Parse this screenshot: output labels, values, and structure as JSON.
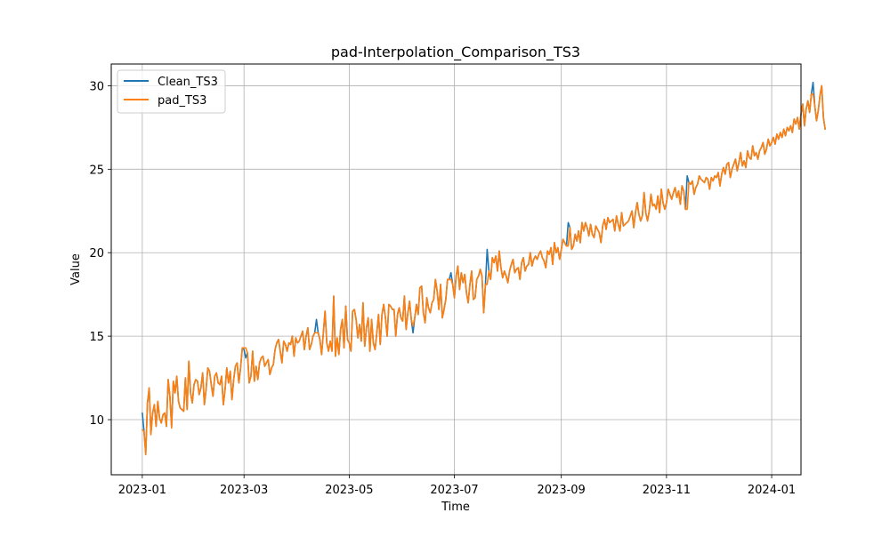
{
  "chart_data": {
    "type": "line",
    "title": "pad-Interpolation_Comparison_TS3",
    "xlabel": "Time",
    "ylabel": "Value",
    "x_range": [
      "2022-12-14",
      "2024-01-18"
    ],
    "ylim": [
      6.7,
      31.3
    ],
    "grid": true,
    "legend_position": "top-left",
    "x_ticks": [
      "2023-01",
      "2023-03",
      "2023-05",
      "2023-07",
      "2023-09",
      "2023-11",
      "2024-01"
    ],
    "y_ticks": [
      10,
      15,
      20,
      25,
      30
    ],
    "start_date": "2023-01-01",
    "series": [
      {
        "name": "Clean_TS3",
        "color": "#1f77b4",
        "values": [
          10.4,
          9.3,
          8.0,
          11.0,
          11.9,
          9.2,
          10.4,
          10.9,
          9.6,
          11.1,
          10.1,
          9.8,
          10.3,
          10.4,
          9.6,
          12.4,
          11.4,
          9.6,
          12.3,
          11.6,
          12.6,
          11.1,
          10.7,
          10.6,
          10.5,
          12.5,
          10.6,
          13.5,
          11.6,
          11.0,
          12.1,
          12.4,
          12.3,
          11.5,
          11.9,
          12.8,
          10.9,
          11.8,
          13.1,
          12.9,
          12.1,
          11.4,
          12.6,
          12.8,
          12.2,
          12.1,
          12.6,
          10.9,
          11.8,
          13.1,
          12.2,
          12.9,
          11.2,
          12.4,
          13.2,
          13.4,
          12.2,
          13.1,
          14.3,
          14.2,
          13.7,
          14.0,
          12.2,
          12.6,
          14.1,
          12.3,
          13.2,
          12.4,
          13.4,
          13.7,
          13.8,
          13.2,
          13.4,
          13.6,
          12.7,
          13.1,
          13.3,
          14.2,
          14.6,
          14.8,
          14.1,
          13.4,
          14.7,
          14.5,
          14.1,
          14.6,
          14.5,
          15.0,
          13.8,
          14.9,
          14.6,
          14.7,
          15.0,
          15.3,
          14.2,
          15.0,
          15.5,
          14.2,
          14.5,
          15.0,
          15.2,
          16.0,
          15.2,
          14.8,
          13.9,
          15.2,
          16.5,
          14.6,
          14.1,
          14.7,
          14.1,
          17.4,
          13.8,
          14.9,
          13.9,
          15.4,
          16.0,
          14.3,
          16.8,
          14.8,
          14.6,
          14.1,
          16.5,
          16.6,
          16.0,
          14.9,
          15.7,
          14.7,
          17.0,
          14.4,
          15.5,
          16.1,
          14.1,
          16.0,
          14.6,
          14.2,
          15.2,
          16.3,
          14.5,
          16.3,
          16.9,
          16.1,
          15.0,
          16.9,
          16.8,
          16.6,
          16.6,
          15.0,
          16.3,
          16.7,
          16.1,
          15.9,
          17.4,
          15.4,
          16.4,
          17.1,
          16.0,
          15.2,
          16.1,
          16.9,
          16.3,
          17.9,
          18.0,
          16.4,
          15.8,
          17.3,
          16.7,
          16.4,
          17.0,
          17.2,
          18.4,
          17.7,
          16.6,
          18.1,
          16.1,
          16.6,
          17.2,
          18.4,
          18.4,
          18.8,
          18.1,
          17.3,
          18.6,
          19.2,
          17.8,
          18.8,
          18.2,
          18.7,
          17.6,
          17.0,
          18.1,
          18.9,
          17.2,
          17.3,
          18.4,
          18.6,
          19.0,
          18.6,
          16.4,
          18.1,
          20.2,
          18.9,
          18.4,
          19.7,
          19.4,
          19.8,
          18.9,
          20.1,
          19.1,
          18.5,
          18.9,
          18.6,
          18.2,
          18.9,
          19.3,
          19.6,
          18.8,
          19.0,
          19.1,
          18.4,
          19.4,
          19.7,
          18.9,
          19.2,
          19.3,
          20.0,
          19.2,
          19.6,
          19.8,
          19.6,
          19.9,
          20.1,
          19.7,
          19.5,
          19.1,
          20.1,
          19.9,
          20.3,
          19.3,
          20.6,
          20.0,
          20.3,
          19.6,
          20.2,
          20.8,
          20.6,
          20.4,
          21.8,
          21.5,
          20.2,
          20.4,
          21.1,
          20.7,
          21.3,
          20.6,
          21.8,
          21.3,
          21.8,
          21.5,
          21.0,
          21.7,
          21.1,
          20.9,
          21.6,
          21.4,
          21.2,
          20.6,
          21.6,
          22.0,
          21.4,
          22.1,
          21.8,
          21.9,
          22.0,
          21.3,
          22.2,
          21.7,
          21.3,
          22.4,
          21.6,
          21.7,
          21.8,
          21.9,
          22.2,
          22.5,
          21.5,
          22.4,
          23.0,
          22.3,
          21.9,
          22.2,
          23.6,
          22.4,
          21.9,
          22.5,
          23.5,
          22.8,
          22.9,
          22.6,
          23.4,
          22.4,
          23.8,
          23.0,
          22.6,
          23.0,
          23.8,
          23.5,
          23.2,
          23.6,
          23.9,
          23.3,
          23.7,
          22.9,
          24.0,
          23.7,
          22.6,
          24.6,
          24.2,
          24.1,
          24.3,
          23.5,
          23.9,
          24.1,
          24.6,
          24.4,
          24.3,
          24.2,
          24.5,
          24.4,
          23.8,
          24.5,
          24.3,
          24.6,
          24.5,
          24.8,
          24.0,
          24.7,
          25.1,
          24.7,
          25.3,
          25.4,
          24.5,
          25.0,
          25.3,
          25.6,
          24.9,
          25.4,
          26.0,
          25.2,
          25.5,
          25.1,
          26.1,
          25.7,
          25.6,
          26.4,
          25.8,
          26.0,
          25.6,
          26.1,
          26.3,
          26.6,
          25.9,
          26.2,
          26.8,
          26.4,
          26.6,
          26.9,
          26.5,
          27.1,
          26.8,
          27.2,
          26.9,
          27.4,
          27.0,
          27.5,
          27.3,
          27.6,
          27.2,
          28.0,
          27.7,
          28.1,
          27.4,
          28.3,
          28.9,
          27.6,
          28.6,
          29.1,
          28.4,
          29.5,
          30.2,
          28.8,
          27.9,
          28.5,
          29.4,
          30.0,
          28.1,
          27.4
        ]
      },
      {
        "name": "pad_TS3",
        "color": "#ff7f0e",
        "values": [
          9.4,
          9.3,
          7.9,
          11.0,
          11.9,
          9.1,
          10.4,
          10.9,
          9.6,
          11.1,
          10.1,
          9.8,
          10.3,
          10.4,
          9.6,
          12.4,
          11.4,
          9.5,
          12.3,
          11.6,
          12.6,
          11.1,
          10.7,
          10.6,
          10.5,
          12.5,
          10.6,
          13.5,
          11.6,
          11.0,
          12.1,
          12.4,
          12.3,
          11.5,
          11.9,
          12.8,
          10.9,
          11.8,
          13.1,
          12.9,
          12.1,
          11.4,
          12.6,
          12.8,
          12.2,
          12.1,
          12.6,
          10.9,
          11.8,
          13.1,
          12.2,
          12.9,
          11.2,
          12.4,
          13.2,
          13.4,
          12.2,
          13.1,
          14.3,
          14.3,
          14.3,
          14.0,
          12.2,
          12.6,
          14.1,
          12.3,
          13.2,
          12.4,
          13.4,
          13.7,
          13.8,
          13.2,
          13.4,
          13.6,
          12.7,
          13.1,
          13.3,
          14.2,
          14.6,
          14.8,
          14.1,
          13.4,
          14.7,
          14.5,
          14.1,
          14.6,
          14.5,
          15.0,
          13.8,
          14.9,
          14.6,
          14.7,
          15.0,
          15.3,
          14.2,
          15.0,
          15.5,
          14.2,
          14.5,
          15.0,
          15.2,
          15.2,
          15.2,
          14.8,
          13.9,
          15.2,
          16.5,
          14.6,
          14.1,
          14.7,
          14.1,
          17.4,
          13.8,
          14.9,
          13.9,
          15.4,
          16.0,
          14.3,
          16.8,
          14.8,
          14.6,
          14.1,
          16.5,
          16.6,
          16.0,
          14.9,
          15.7,
          14.7,
          17.0,
          14.4,
          15.5,
          16.1,
          14.1,
          16.0,
          14.6,
          14.2,
          15.2,
          16.3,
          14.5,
          16.3,
          16.9,
          16.1,
          15.0,
          16.9,
          16.8,
          16.6,
          16.6,
          15.0,
          16.3,
          16.7,
          16.1,
          15.9,
          17.4,
          15.4,
          16.4,
          17.1,
          16.0,
          15.6,
          16.1,
          16.9,
          16.3,
          17.9,
          18.0,
          16.4,
          15.8,
          17.3,
          16.7,
          16.4,
          17.0,
          17.2,
          18.4,
          17.7,
          16.6,
          18.1,
          16.1,
          16.6,
          17.2,
          18.4,
          18.4,
          18.4,
          18.1,
          17.3,
          18.6,
          19.2,
          17.8,
          18.8,
          18.2,
          18.7,
          17.6,
          17.0,
          18.1,
          18.9,
          17.2,
          17.3,
          18.4,
          18.6,
          19.0,
          18.6,
          16.4,
          18.1,
          18.1,
          18.9,
          18.4,
          19.7,
          19.4,
          19.8,
          18.9,
          20.1,
          19.1,
          18.5,
          18.9,
          18.6,
          18.2,
          18.9,
          19.3,
          19.6,
          18.8,
          19.0,
          19.1,
          18.4,
          19.4,
          19.7,
          18.9,
          19.2,
          19.3,
          20.0,
          19.2,
          19.6,
          19.8,
          19.6,
          19.9,
          20.1,
          19.7,
          19.5,
          19.1,
          20.1,
          19.9,
          20.3,
          19.3,
          20.6,
          20.0,
          20.3,
          19.6,
          20.2,
          20.8,
          20.6,
          20.4,
          20.4,
          21.5,
          20.2,
          20.4,
          21.1,
          20.7,
          21.3,
          20.6,
          21.8,
          21.3,
          21.8,
          21.5,
          21.0,
          21.7,
          21.1,
          20.9,
          21.6,
          21.4,
          21.2,
          20.6,
          21.6,
          22.0,
          21.4,
          22.1,
          21.8,
          21.9,
          22.0,
          21.3,
          22.2,
          21.7,
          21.3,
          22.4,
          21.6,
          21.7,
          21.8,
          21.9,
          22.2,
          22.5,
          21.5,
          22.4,
          23.0,
          22.3,
          21.9,
          22.2,
          23.6,
          22.4,
          21.9,
          22.5,
          23.5,
          22.8,
          22.9,
          22.6,
          23.4,
          22.4,
          23.8,
          23.0,
          22.6,
          23.0,
          23.8,
          23.5,
          23.2,
          23.6,
          23.9,
          23.3,
          23.7,
          22.9,
          24.0,
          23.7,
          22.6,
          22.6,
          24.2,
          24.1,
          24.3,
          23.5,
          23.9,
          24.1,
          24.6,
          24.4,
          24.3,
          24.2,
          24.5,
          24.4,
          23.8,
          24.5,
          24.3,
          24.6,
          24.5,
          24.8,
          24.0,
          24.7,
          25.1,
          24.7,
          25.3,
          25.4,
          24.5,
          25.0,
          25.3,
          25.6,
          24.9,
          25.4,
          26.0,
          25.2,
          25.5,
          25.1,
          26.1,
          25.7,
          25.6,
          26.4,
          25.8,
          26.0,
          25.6,
          26.1,
          26.3,
          26.6,
          25.9,
          26.2,
          26.8,
          26.4,
          26.6,
          26.9,
          26.5,
          27.1,
          26.8,
          27.2,
          26.9,
          27.4,
          27.0,
          27.5,
          27.3,
          27.6,
          27.2,
          28.0,
          27.7,
          28.1,
          27.4,
          28.3,
          28.9,
          27.6,
          28.6,
          29.1,
          28.4,
          29.5,
          29.5,
          28.8,
          27.9,
          28.5,
          29.4,
          30.0,
          28.1,
          27.4
        ]
      }
    ]
  }
}
